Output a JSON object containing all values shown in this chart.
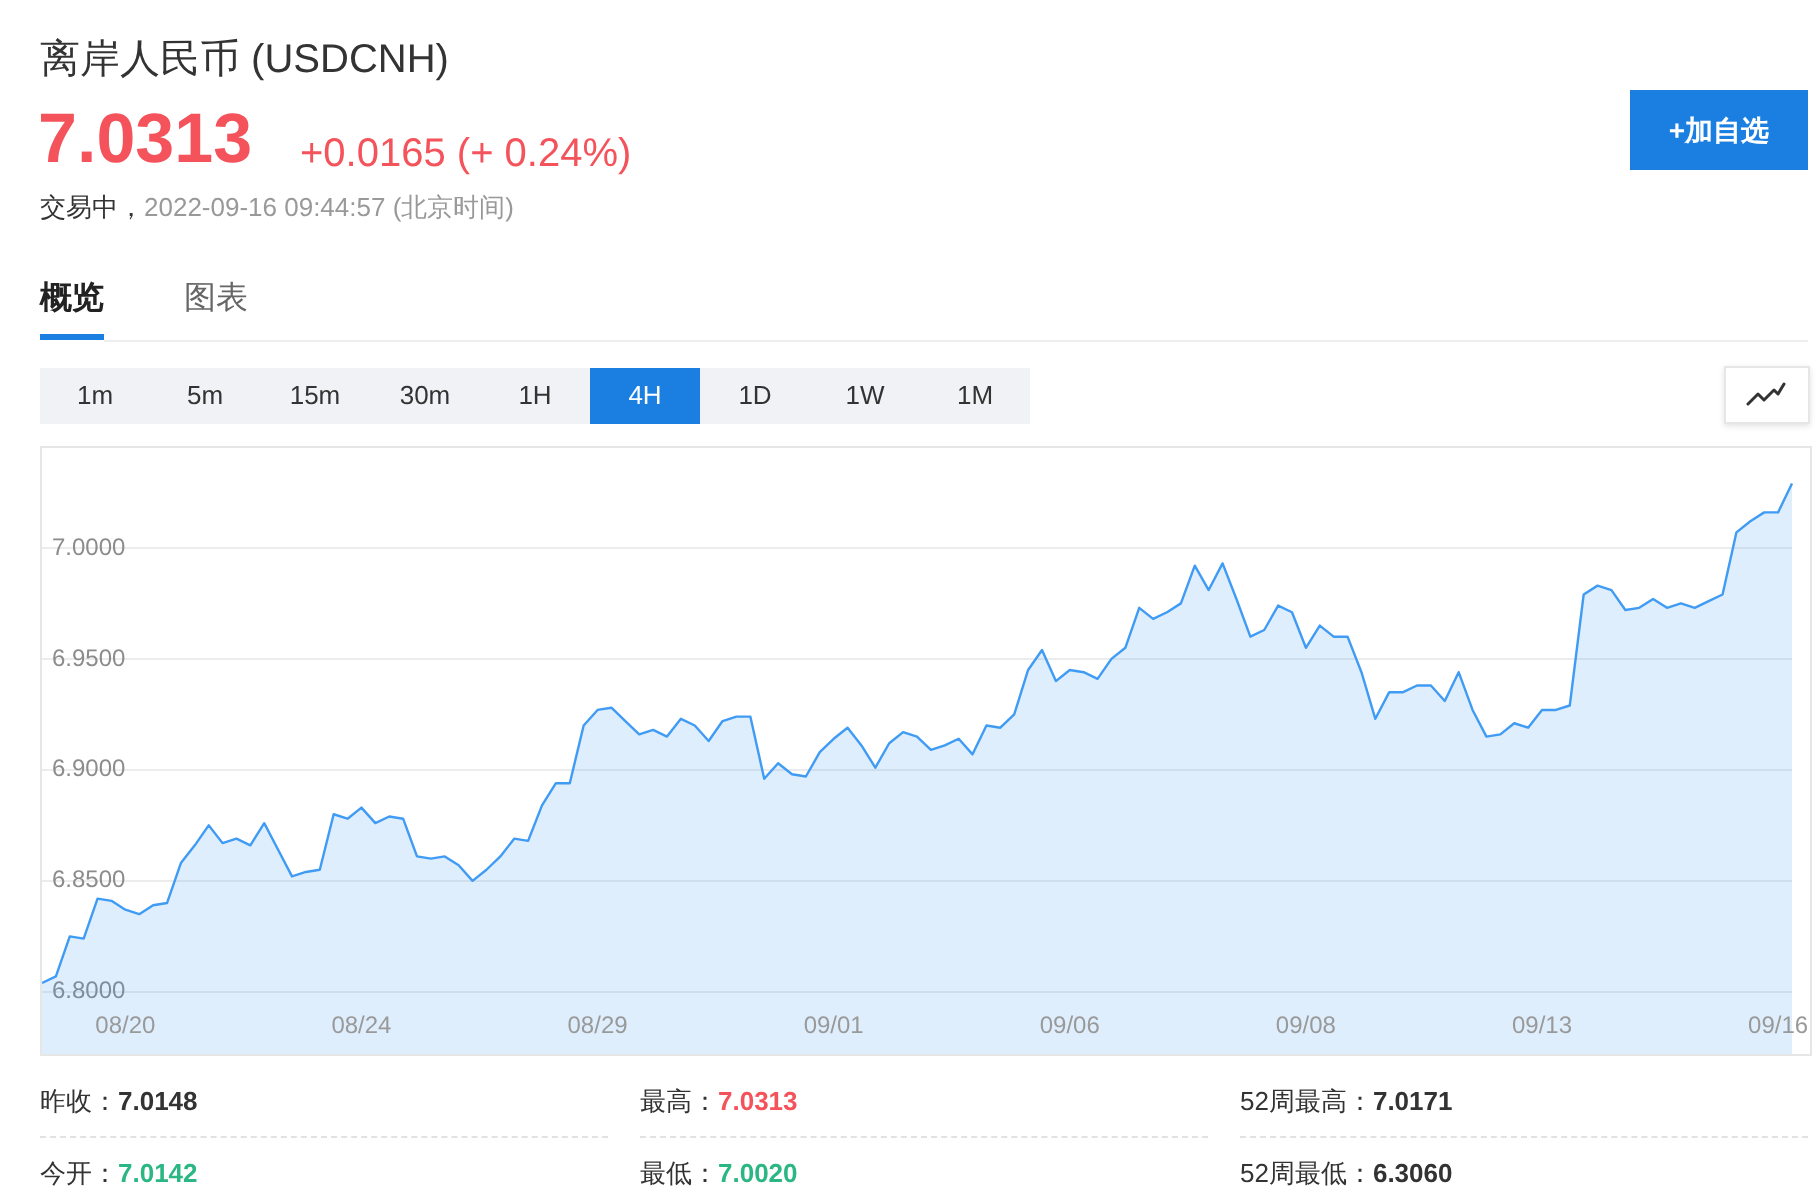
{
  "chart_data": {
    "type": "area",
    "title": "离岸人民币 (USDCNH)",
    "categories": [
      null,
      null,
      null,
      null,
      null,
      null,
      "08/20",
      null,
      null,
      null,
      null,
      null,
      null,
      null,
      null,
      null,
      null,
      null,
      null,
      null,
      null,
      null,
      null,
      "08/24",
      null,
      null,
      null,
      null,
      null,
      null,
      null,
      null,
      null,
      null,
      null,
      null,
      null,
      null,
      null,
      null,
      "08/29",
      null,
      null,
      null,
      null,
      null,
      null,
      null,
      null,
      null,
      null,
      null,
      null,
      null,
      null,
      null,
      null,
      "09/01",
      null,
      null,
      null,
      null,
      null,
      null,
      null,
      null,
      null,
      null,
      null,
      null,
      null,
      null,
      null,
      null,
      "09/06",
      null,
      null,
      null,
      null,
      null,
      null,
      null,
      null,
      null,
      null,
      null,
      null,
      null,
      null,
      null,
      null,
      "09/08",
      null,
      null,
      null,
      null,
      null,
      null,
      null,
      null,
      null,
      null,
      null,
      null,
      null,
      null,
      null,
      null,
      "09/13",
      null,
      null,
      null,
      null,
      null,
      null,
      null,
      null,
      null,
      null,
      null,
      null,
      null,
      null,
      null,
      null,
      "09/16",
      null
    ],
    "values": [
      6.804,
      6.807,
      6.825,
      6.824,
      6.842,
      6.841,
      6.837,
      6.835,
      6.839,
      6.84,
      6.858,
      6.866,
      6.875,
      6.867,
      6.869,
      6.866,
      6.876,
      6.864,
      6.852,
      6.854,
      6.855,
      6.88,
      6.878,
      6.883,
      6.876,
      6.879,
      6.878,
      6.861,
      6.86,
      6.861,
      6.857,
      6.85,
      6.855,
      6.861,
      6.869,
      6.868,
      6.884,
      6.894,
      6.894,
      6.92,
      6.927,
      6.928,
      6.922,
      6.916,
      6.918,
      6.915,
      6.923,
      6.92,
      6.913,
      6.922,
      6.924,
      6.924,
      6.896,
      6.903,
      6.898,
      6.897,
      6.908,
      6.914,
      6.919,
      6.911,
      6.901,
      6.912,
      6.917,
      6.915,
      6.909,
      6.911,
      6.914,
      6.907,
      6.92,
      6.919,
      6.925,
      6.945,
      6.954,
      6.94,
      6.945,
      6.944,
      6.941,
      6.95,
      6.955,
      6.973,
      6.968,
      6.971,
      6.975,
      6.992,
      6.981,
      6.993,
      6.977,
      6.96,
      6.963,
      6.974,
      6.971,
      6.955,
      6.965,
      6.96,
      6.96,
      6.944,
      6.923,
      6.935,
      6.935,
      6.938,
      6.938,
      6.931,
      6.944,
      6.927,
      6.915,
      6.916,
      6.921,
      6.919,
      6.927,
      6.927,
      6.929,
      6.979,
      6.983,
      6.981,
      6.972,
      6.973,
      6.977,
      6.973,
      6.975,
      6.973,
      6.976,
      6.979,
      7.007,
      7.012,
      7.016,
      7.016,
      7.029
    ],
    "color": "#3f9bf3",
    "ylim": [
      6.772,
      7.045
    ],
    "yticks": [
      {
        "value": 6.8,
        "label": "6.8000"
      },
      {
        "value": 6.85,
        "label": "6.8500"
      },
      {
        "value": 6.9,
        "label": "6.9000"
      },
      {
        "value": 6.95,
        "label": "6.9500"
      },
      {
        "value": 7,
        "label": "7.0000"
      }
    ],
    "grid": "y",
    "annotations": [
      "7.0313",
      "+0.0165 (+ 0.24%)",
      "交易中，",
      "2022-09-16 09:44:57 (北京时间)",
      "+加自选",
      "概览",
      "图表",
      "1m",
      "5m",
      "15m",
      "30m",
      "1H",
      "4H",
      "1D",
      "1W",
      "1M",
      "昨收：",
      "7.0148",
      "最高：",
      "7.0313",
      "52周最高：",
      "7.0171",
      "今开：",
      "7.0142",
      "最低：",
      "7.0020",
      "52周最低：",
      "6.3060"
    ]
  }
}
